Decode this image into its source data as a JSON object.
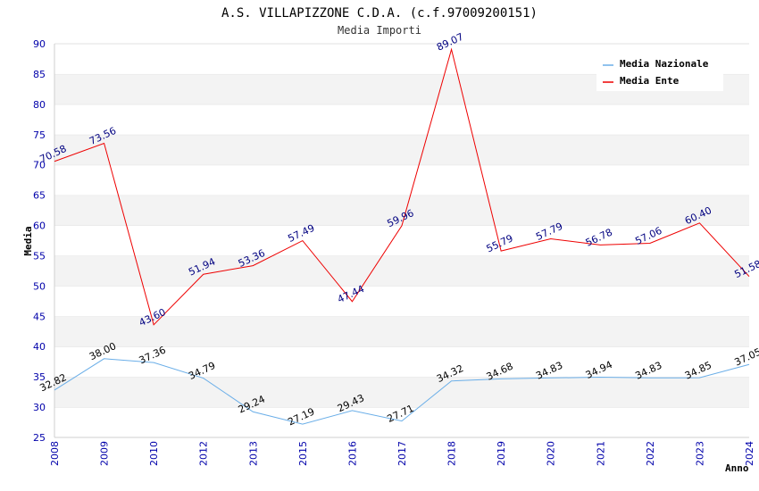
{
  "chart_data": {
    "type": "line",
    "title": "A.S. VILLAPIZZONE C.D.A. (c.f.97009200151)",
    "subtitle": "Media Importi",
    "xlabel": "Anno",
    "ylabel": "Media",
    "ylim": [
      25,
      90
    ],
    "yticks": [
      "25",
      "30",
      "35",
      "40",
      "45",
      "50",
      "55",
      "60",
      "65",
      "70",
      "75",
      "80",
      "85",
      "90"
    ],
    "categories": [
      "2008",
      "2009",
      "2010",
      "2012",
      "2013",
      "2015",
      "2016",
      "2017",
      "2018",
      "2019",
      "2020",
      "2021",
      "2022",
      "2023",
      "2024"
    ],
    "legend_position": "top-right",
    "grid": true,
    "series": [
      {
        "name": "Media Nazionale",
        "color": "#6aaee8",
        "label_color": "#000000",
        "values": [
          32.82,
          38.0,
          37.36,
          34.79,
          29.24,
          27.19,
          29.43,
          27.71,
          34.32,
          34.68,
          34.83,
          34.94,
          34.83,
          34.85,
          37.05
        ],
        "labels": [
          "32.82",
          "38.00",
          "37.36",
          "34.79",
          "29.24",
          "27.19",
          "29.43",
          "27.71",
          "34.32",
          "34.68",
          "34.83",
          "34.94",
          "34.83",
          "34.85",
          "37.05"
        ]
      },
      {
        "name": "Media Ente",
        "color": "#ee0000",
        "label_color": "#000080",
        "values": [
          70.58,
          73.56,
          43.6,
          51.94,
          53.36,
          57.49,
          47.44,
          59.96,
          89.07,
          55.79,
          57.79,
          56.78,
          57.06,
          60.4,
          51.58
        ],
        "labels": [
          "70.58",
          "73.56",
          "43.60",
          "51.94",
          "53.36",
          "57.49",
          "47.44",
          "59.96",
          "89.07",
          "55.79",
          "57.79",
          "56.78",
          "57.06",
          "60.40",
          "51.58"
        ]
      }
    ]
  }
}
